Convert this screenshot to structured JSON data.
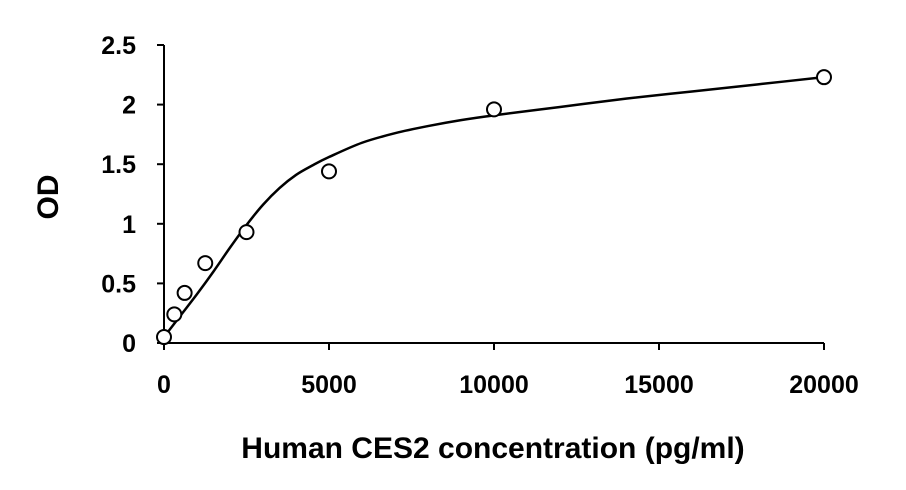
{
  "chart_data": {
    "type": "scatter",
    "title": "",
    "xlabel": "Human CES2 concentration (pg/ml)",
    "ylabel": "OD",
    "xlim": [
      0,
      20000
    ],
    "ylim": [
      0,
      2.5
    ],
    "x_ticks": [
      0,
      5000,
      10000,
      15000,
      20000
    ],
    "y_ticks": [
      0,
      0.5,
      1,
      1.5,
      2,
      2.5
    ],
    "x_tick_labels": [
      "0",
      "5000",
      "10000",
      "15000",
      "20000"
    ],
    "y_tick_labels": [
      "0",
      "0.5",
      "1",
      "1.5",
      "2",
      "2.5"
    ],
    "grid": false,
    "legend": "none",
    "series": [
      {
        "marker": "open-circle",
        "x": [
          0,
          312.5,
          625,
          1250,
          2500,
          5000,
          10000,
          20000
        ],
        "y": [
          0.05,
          0.24,
          0.42,
          0.67,
          0.93,
          1.44,
          1.96,
          2.23
        ]
      }
    ],
    "fit_curve": {
      "style": "smooth-line",
      "x": [
        0,
        500,
        1000,
        1500,
        2000,
        2500,
        3000,
        3500,
        4000,
        4500,
        5000,
        6000,
        7000,
        8000,
        9000,
        10000,
        12000,
        14000,
        16000,
        18000,
        20000
      ],
      "y": [
        0.05,
        0.23,
        0.41,
        0.6,
        0.8,
        0.99,
        1.16,
        1.3,
        1.41,
        1.49,
        1.56,
        1.68,
        1.76,
        1.82,
        1.87,
        1.91,
        1.98,
        2.05,
        2.11,
        2.17,
        2.23
      ]
    }
  }
}
